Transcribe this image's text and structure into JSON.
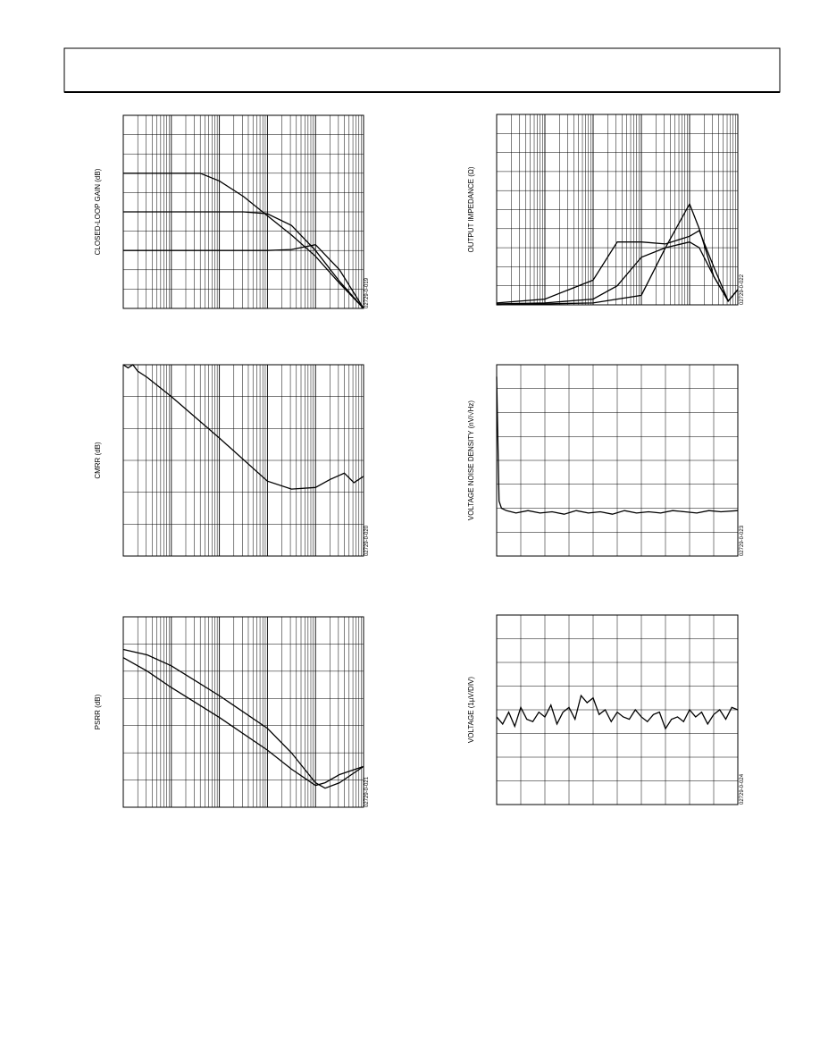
{
  "chart_data": [
    {
      "type": "line",
      "y_label": "CLOSED-LOOP GAIN (dB)",
      "figure_code": "02729-0-019",
      "log_x": true,
      "xlim": [
        0,
        5
      ],
      "ylim": [
        0,
        10
      ],
      "x": [
        0,
        1,
        1.6,
        2,
        2.5,
        3,
        3.5,
        4,
        4.5,
        5
      ],
      "series": [
        {
          "color": "#000000",
          "values": [
            7,
            7,
            7,
            6.6,
            5.8,
            4.8,
            3.8,
            2.7,
            1.3,
            0
          ]
        },
        {
          "color": "#000000",
          "values": [
            5,
            5,
            5,
            5,
            5,
            4.9,
            4.3,
            3,
            1.4,
            0
          ]
        },
        {
          "color": "#000000",
          "values": [
            3,
            3,
            3,
            3,
            3,
            3,
            3.05,
            3.3,
            2,
            0
          ]
        }
      ]
    },
    {
      "type": "line",
      "y_label": "OUTPUT IMPEDANCE (Ω)",
      "figure_code": "02729-0-022",
      "log_x": true,
      "xlim": [
        0,
        5
      ],
      "ylim": [
        0,
        10
      ],
      "x": [
        0,
        1,
        2,
        2.5,
        3,
        3.5,
        4,
        4.2,
        4.5,
        4.8,
        5
      ],
      "series": [
        {
          "color": "#000000",
          "values": [
            0.1,
            0.3,
            1.3,
            3.3,
            3.3,
            3.2,
            3.6,
            3.9,
            2,
            0.2,
            0.8
          ]
        },
        {
          "color": "#000000",
          "values": [
            0.05,
            0.1,
            0.3,
            1,
            2.5,
            3,
            3.3,
            3,
            1.5,
            0.2,
            0.8
          ]
        },
        {
          "color": "#000000",
          "values": [
            0,
            0.05,
            0.1,
            0.3,
            0.5,
            3,
            5.3,
            4,
            1.5,
            0.2,
            0.8
          ]
        }
      ]
    },
    {
      "type": "line",
      "y_label": "CMRR (dB)",
      "figure_code": "02729-0-020",
      "log_x": true,
      "xlim": [
        0,
        5
      ],
      "ylim": [
        0,
        6
      ],
      "x": [
        0,
        0.1,
        0.2,
        0.3,
        0.5,
        1,
        2,
        3,
        3.5,
        4,
        4.3,
        4.6,
        4.8,
        5
      ],
      "series": [
        {
          "color": "#000000",
          "values": [
            6,
            5.9,
            6,
            5.8,
            5.6,
            5,
            3.7,
            2.35,
            2.1,
            2.15,
            2.4,
            2.6,
            2.3,
            2.5
          ]
        }
      ]
    },
    {
      "type": "line",
      "y_label": "VOLTAGE NOISE DENSITY (nV/√Hz)",
      "figure_code": "02729-0-023",
      "log_x": false,
      "xlim": [
        0,
        10
      ],
      "ylim": [
        0,
        8
      ],
      "x": [
        0,
        0.1,
        0.2,
        0.4,
        0.8,
        1.3,
        1.8,
        2.3,
        2.8,
        3.3,
        3.8,
        4.3,
        4.8,
        5.3,
        5.8,
        6.3,
        6.8,
        7.3,
        7.8,
        8.3,
        8.8,
        9.3,
        10
      ],
      "series": [
        {
          "color": "#000000",
          "values": [
            7.5,
            2.3,
            2,
            1.9,
            1.8,
            1.9,
            1.8,
            1.85,
            1.75,
            1.9,
            1.8,
            1.85,
            1.75,
            1.9,
            1.8,
            1.85,
            1.8,
            1.9,
            1.85,
            1.8,
            1.9,
            1.85,
            1.9
          ]
        }
      ]
    },
    {
      "type": "line",
      "y_label": "PSRR (dB)",
      "figure_code": "02729-0-021",
      "log_x": true,
      "xlim": [
        0,
        5
      ],
      "ylim": [
        0,
        7
      ],
      "x": [
        0,
        0.5,
        1,
        2,
        3,
        3.5,
        4,
        4.2,
        4.5,
        5
      ],
      "series": [
        {
          "color": "#000000",
          "values": [
            5.8,
            5.6,
            5.2,
            4.1,
            2.9,
            2,
            0.9,
            0.7,
            0.9,
            1.5
          ]
        },
        {
          "color": "#000000",
          "values": [
            5.5,
            5,
            4.4,
            3.3,
            2.1,
            1.4,
            0.8,
            0.9,
            1.2,
            1.5
          ]
        }
      ]
    },
    {
      "type": "line",
      "y_label": "VOLTAGE (1µV/DIV)",
      "figure_code": "02729-0-024",
      "log_x": false,
      "xlim": [
        0,
        10
      ],
      "ylim": [
        0,
        8
      ],
      "x": [
        0,
        0.25,
        0.5,
        0.75,
        1,
        1.25,
        1.5,
        1.75,
        2,
        2.25,
        2.5,
        2.75,
        3,
        3.25,
        3.5,
        3.75,
        4,
        4.25,
        4.5,
        4.75,
        5,
        5.25,
        5.5,
        5.75,
        6,
        6.25,
        6.5,
        6.75,
        7,
        7.25,
        7.5,
        7.75,
        8,
        8.25,
        8.5,
        8.75,
        9,
        9.25,
        9.5,
        9.75,
        10
      ],
      "series": [
        {
          "color": "#000000",
          "values": [
            3.7,
            3.4,
            3.9,
            3.3,
            4.1,
            3.6,
            3.5,
            3.9,
            3.7,
            4.2,
            3.4,
            3.9,
            4.1,
            3.6,
            4.6,
            4.3,
            4.5,
            3.8,
            4,
            3.5,
            3.9,
            3.7,
            3.6,
            4,
            3.7,
            3.5,
            3.8,
            3.9,
            3.2,
            3.6,
            3.7,
            3.5,
            4,
            3.7,
            3.9,
            3.4,
            3.8,
            4,
            3.6,
            4.1,
            4
          ]
        }
      ]
    }
  ]
}
